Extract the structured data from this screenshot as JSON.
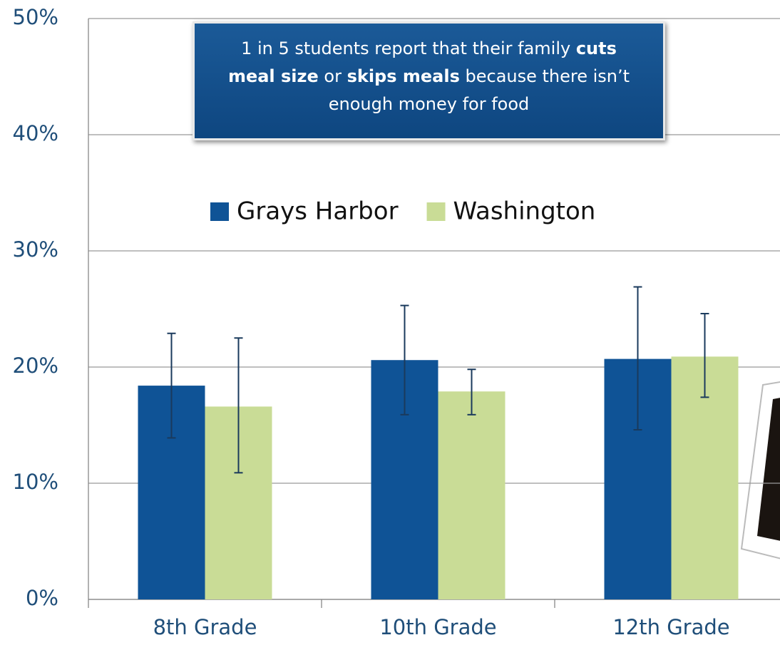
{
  "chart_data": {
    "type": "bar",
    "annotation": [
      "1 in 5 students report that their family ",
      "cuts meal size",
      " or ",
      "skips meals",
      " because there isn’t enough money for food"
    ],
    "categories": [
      "8th Grade",
      "10th Grade",
      "12th Grade"
    ],
    "series": [
      {
        "name": "Grays Harbor",
        "color": "#0f5396",
        "values": [
          18.4,
          20.6,
          20.7
        ],
        "ci_low": [
          13.9,
          15.9,
          14.6
        ],
        "ci_high": [
          22.9,
          25.3,
          26.9
        ]
      },
      {
        "name": "Washington",
        "color": "#c9dc96",
        "values": [
          16.6,
          17.9,
          20.9
        ],
        "ci_low": [
          10.9,
          15.9,
          17.4
        ],
        "ci_high": [
          22.5,
          19.8,
          24.6
        ]
      }
    ],
    "ylim": [
      0,
      50
    ],
    "yticks": [
      {
        "value": 0,
        "label": "0%"
      },
      {
        "value": 10,
        "label": "10%"
      },
      {
        "value": 20,
        "label": "20%"
      },
      {
        "value": 30,
        "label": "30%"
      },
      {
        "value": 40,
        "label": "40%"
      },
      {
        "value": 50,
        "label": "50%"
      }
    ],
    "grid": true,
    "legend": "top-center"
  }
}
